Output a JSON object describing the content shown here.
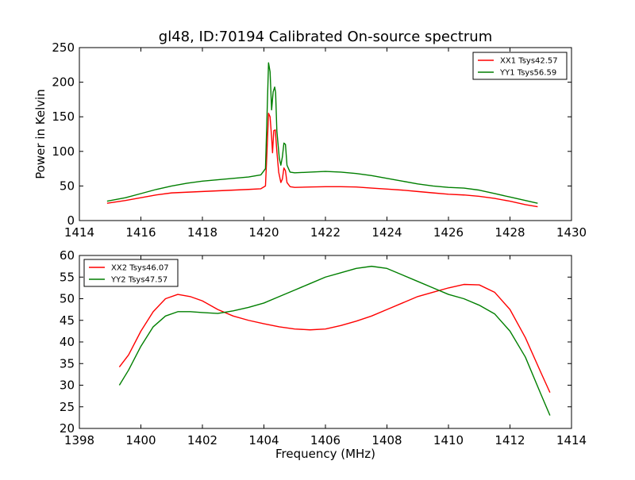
{
  "title": "gl48, ID:70194 Calibrated On-source spectrum",
  "chart_data": [
    {
      "type": "line",
      "xlabel": "",
      "ylabel": "Power in Kelvin",
      "xlim": [
        1414,
        1430
      ],
      "ylim": [
        0,
        250
      ],
      "xticks": [
        "1414",
        "1416",
        "1418",
        "1420",
        "1422",
        "1424",
        "1426",
        "1428",
        "1430"
      ],
      "yticks": [
        "0",
        "50",
        "100",
        "150",
        "200",
        "250"
      ],
      "legend_position": "top-right",
      "series": [
        {
          "name": "XX1 Tsys42.57",
          "color": "#ff0000",
          "points": [
            [
              14.9,
              25
            ],
            [
              15.5,
              29
            ],
            [
              16.0,
              33
            ],
            [
              16.5,
              37
            ],
            [
              17.0,
              40
            ],
            [
              17.5,
              41
            ],
            [
              18.0,
              42
            ],
            [
              18.5,
              43
            ],
            [
              19.0,
              44
            ],
            [
              19.5,
              45
            ],
            [
              19.9,
              46
            ],
            [
              20.05,
              50
            ],
            [
              20.1,
              100
            ],
            [
              20.15,
              155
            ],
            [
              20.2,
              150
            ],
            [
              20.25,
              120
            ],
            [
              20.28,
              98
            ],
            [
              20.32,
              130
            ],
            [
              20.37,
              131
            ],
            [
              20.42,
              100
            ],
            [
              20.48,
              70
            ],
            [
              20.55,
              55
            ],
            [
              20.6,
              60
            ],
            [
              20.65,
              76
            ],
            [
              20.7,
              72
            ],
            [
              20.75,
              55
            ],
            [
              20.85,
              49
            ],
            [
              21.0,
              48
            ],
            [
              21.5,
              48.5
            ],
            [
              22.0,
              49
            ],
            [
              22.5,
              49
            ],
            [
              23.0,
              48.5
            ],
            [
              23.5,
              47
            ],
            [
              24.0,
              45.5
            ],
            [
              24.5,
              44
            ],
            [
              25.0,
              42
            ],
            [
              25.5,
              40
            ],
            [
              26.0,
              38
            ],
            [
              26.5,
              37
            ],
            [
              27.0,
              35
            ],
            [
              27.5,
              32
            ],
            [
              28.0,
              28
            ],
            [
              28.5,
              23
            ],
            [
              28.9,
              20
            ]
          ]
        },
        {
          "name": "YY1 Tsys56.59",
          "color": "#007f00",
          "points": [
            [
              14.9,
              28
            ],
            [
              15.5,
              33
            ],
            [
              16.0,
              39
            ],
            [
              16.5,
              45
            ],
            [
              17.0,
              50
            ],
            [
              17.5,
              54
            ],
            [
              18.0,
              57
            ],
            [
              18.5,
              59
            ],
            [
              19.0,
              61
            ],
            [
              19.5,
              63
            ],
            [
              19.9,
              66
            ],
            [
              20.05,
              75
            ],
            [
              20.1,
              150
            ],
            [
              20.15,
              228
            ],
            [
              20.2,
              215
            ],
            [
              20.25,
              160
            ],
            [
              20.3,
              186
            ],
            [
              20.35,
              193
            ],
            [
              20.38,
              185
            ],
            [
              20.42,
              130
            ],
            [
              20.5,
              90
            ],
            [
              20.55,
              80
            ],
            [
              20.6,
              92
            ],
            [
              20.65,
              112
            ],
            [
              20.7,
              110
            ],
            [
              20.75,
              80
            ],
            [
              20.85,
              70
            ],
            [
              21.0,
              69
            ],
            [
              21.5,
              70
            ],
            [
              22.0,
              71
            ],
            [
              22.5,
              70
            ],
            [
              23.0,
              68
            ],
            [
              23.5,
              65
            ],
            [
              24.0,
              61
            ],
            [
              24.5,
              57
            ],
            [
              25.0,
              53
            ],
            [
              25.5,
              50
            ],
            [
              26.0,
              48
            ],
            [
              26.5,
              47
            ],
            [
              27.0,
              44
            ],
            [
              27.5,
              39
            ],
            [
              28.0,
              34
            ],
            [
              28.5,
              29
            ],
            [
              28.9,
              25
            ]
          ]
        }
      ]
    },
    {
      "type": "line",
      "xlabel": "Frequency (MHz)",
      "ylabel": "",
      "xlim": [
        1398,
        1414
      ],
      "ylim": [
        20,
        60
      ],
      "xticks": [
        "1398",
        "1400",
        "1402",
        "1404",
        "1406",
        "1408",
        "1410",
        "1412",
        "1414"
      ],
      "yticks": [
        "20",
        "25",
        "30",
        "35",
        "40",
        "45",
        "50",
        "55",
        "60"
      ],
      "legend_position": "top-left",
      "series": [
        {
          "name": "XX2 Tsys46.07",
          "color": "#ff0000",
          "points": [
            [
              1399.3,
              34.2
            ],
            [
              1399.6,
              37
            ],
            [
              1400.0,
              42.5
            ],
            [
              1400.4,
              47
            ],
            [
              1400.8,
              50
            ],
            [
              1401.2,
              51
            ],
            [
              1401.6,
              50.5
            ],
            [
              1402.0,
              49.5
            ],
            [
              1402.5,
              47.5
            ],
            [
              1403.0,
              46
            ],
            [
              1403.5,
              45
            ],
            [
              1404.0,
              44.2
            ],
            [
              1404.5,
              43.5
            ],
            [
              1405.0,
              43
            ],
            [
              1405.5,
              42.8
            ],
            [
              1406.0,
              43
            ],
            [
              1406.5,
              43.8
            ],
            [
              1407.0,
              44.8
            ],
            [
              1407.5,
              46
            ],
            [
              1408.0,
              47.5
            ],
            [
              1408.5,
              49
            ],
            [
              1409.0,
              50.5
            ],
            [
              1409.5,
              51.5
            ],
            [
              1410.0,
              52.5
            ],
            [
              1410.5,
              53.3
            ],
            [
              1411.0,
              53.2
            ],
            [
              1411.5,
              51.5
            ],
            [
              1412.0,
              47.5
            ],
            [
              1412.5,
              41
            ],
            [
              1413.0,
              33
            ],
            [
              1413.3,
              28.3
            ]
          ]
        },
        {
          "name": "YY2 Tsys47.57",
          "color": "#007f00",
          "points": [
            [
              1399.3,
              30
            ],
            [
              1399.6,
              33.5
            ],
            [
              1400.0,
              39
            ],
            [
              1400.4,
              43.5
            ],
            [
              1400.8,
              46
            ],
            [
              1401.2,
              47
            ],
            [
              1401.6,
              47
            ],
            [
              1402.0,
              46.8
            ],
            [
              1402.5,
              46.6
            ],
            [
              1403.0,
              47.2
            ],
            [
              1403.5,
              48
            ],
            [
              1404.0,
              49
            ],
            [
              1404.5,
              50.5
            ],
            [
              1405.0,
              52
            ],
            [
              1405.5,
              53.5
            ],
            [
              1406.0,
              55
            ],
            [
              1406.5,
              56
            ],
            [
              1407.0,
              57
            ],
            [
              1407.5,
              57.5
            ],
            [
              1408.0,
              57
            ],
            [
              1408.5,
              55.5
            ],
            [
              1409.0,
              54
            ],
            [
              1409.5,
              52.5
            ],
            [
              1410.0,
              51
            ],
            [
              1410.5,
              50
            ],
            [
              1411.0,
              48.5
            ],
            [
              1411.5,
              46.5
            ],
            [
              1412.0,
              42.5
            ],
            [
              1412.5,
              36.5
            ],
            [
              1413.0,
              28
            ],
            [
              1413.3,
              23
            ]
          ]
        }
      ]
    }
  ]
}
